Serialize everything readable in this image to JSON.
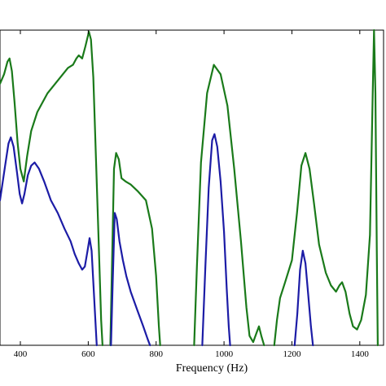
{
  "chart_data": {
    "type": "line",
    "xlabel": "Frequency (Hz)",
    "ylabel": "",
    "title": "",
    "xlim": [
      340,
      1470
    ],
    "ylim": [
      0,
      1
    ],
    "x_ticks": [
      400,
      600,
      800,
      1000,
      1200,
      1400
    ],
    "x_tick_labels": [
      "400",
      "600",
      "800",
      "1000",
      "1200",
      "1400"
    ],
    "grid": false,
    "legend": "none",
    "series": [
      {
        "color": "#1a7a1a",
        "points": [
          [
            340,
            0.83
          ],
          [
            352,
            0.86
          ],
          [
            362,
            0.9
          ],
          [
            368,
            0.91
          ],
          [
            375,
            0.87
          ],
          [
            383,
            0.77
          ],
          [
            392,
            0.64
          ],
          [
            400,
            0.56
          ],
          [
            410,
            0.52
          ],
          [
            420,
            0.6
          ],
          [
            432,
            0.68
          ],
          [
            450,
            0.74
          ],
          [
            480,
            0.8
          ],
          [
            510,
            0.84
          ],
          [
            540,
            0.88
          ],
          [
            555,
            0.89
          ],
          [
            565,
            0.91
          ],
          [
            572,
            0.92
          ],
          [
            582,
            0.91
          ],
          [
            592,
            0.95
          ],
          [
            602,
            0.995
          ],
          [
            608,
            0.97
          ],
          [
            615,
            0.85
          ],
          [
            622,
            0.62
          ],
          [
            630,
            0.35
          ],
          [
            638,
            0.08
          ],
          [
            642,
            0.0
          ],
          null,
          [
            665,
            0.0
          ],
          [
            670,
            0.25
          ],
          [
            676,
            0.56
          ],
          [
            682,
            0.61
          ],
          [
            690,
            0.59
          ],
          [
            698,
            0.53
          ],
          [
            710,
            0.52
          ],
          [
            725,
            0.51
          ],
          [
            745,
            0.49
          ],
          [
            770,
            0.46
          ],
          [
            788,
            0.37
          ],
          [
            800,
            0.22
          ],
          [
            808,
            0.06
          ],
          [
            812,
            0.0
          ],
          null,
          [
            912,
            0.0
          ],
          [
            920,
            0.25
          ],
          [
            932,
            0.58
          ],
          [
            950,
            0.8
          ],
          [
            970,
            0.89
          ],
          [
            990,
            0.86
          ],
          [
            1010,
            0.76
          ],
          [
            1030,
            0.56
          ],
          [
            1050,
            0.33
          ],
          [
            1066,
            0.12
          ],
          [
            1075,
            0.03
          ],
          [
            1086,
            0.01
          ],
          [
            1096,
            0.04
          ],
          [
            1103,
            0.06
          ],
          [
            1110,
            0.03
          ],
          [
            1118,
            0.0
          ],
          null,
          [
            1148,
            0.0
          ],
          [
            1156,
            0.08
          ],
          [
            1165,
            0.15
          ],
          [
            1180,
            0.2
          ],
          [
            1200,
            0.27
          ],
          [
            1215,
            0.42
          ],
          [
            1228,
            0.57
          ],
          [
            1240,
            0.61
          ],
          [
            1252,
            0.56
          ],
          [
            1265,
            0.45
          ],
          [
            1280,
            0.32
          ],
          [
            1300,
            0.23
          ],
          [
            1315,
            0.19
          ],
          [
            1330,
            0.17
          ],
          [
            1340,
            0.19
          ],
          [
            1348,
            0.2
          ],
          [
            1358,
            0.17
          ],
          [
            1370,
            0.1
          ],
          [
            1380,
            0.06
          ],
          [
            1392,
            0.05
          ],
          [
            1404,
            0.08
          ],
          [
            1418,
            0.16
          ],
          [
            1430,
            0.35
          ],
          [
            1438,
            0.8
          ],
          [
            1442,
            1.0
          ],
          [
            1446,
            0.8
          ],
          [
            1450,
            0.3
          ],
          [
            1453,
            0.0
          ]
        ]
      },
      {
        "color": "#1c1ca6",
        "points": [
          [
            340,
            0.46
          ],
          [
            355,
            0.57
          ],
          [
            365,
            0.64
          ],
          [
            372,
            0.66
          ],
          [
            380,
            0.63
          ],
          [
            390,
            0.55
          ],
          [
            398,
            0.48
          ],
          [
            405,
            0.45
          ],
          [
            412,
            0.48
          ],
          [
            422,
            0.54
          ],
          [
            432,
            0.57
          ],
          [
            442,
            0.58
          ],
          [
            455,
            0.56
          ],
          [
            470,
            0.52
          ],
          [
            490,
            0.46
          ],
          [
            510,
            0.42
          ],
          [
            530,
            0.37
          ],
          [
            548,
            0.33
          ],
          [
            560,
            0.29
          ],
          [
            572,
            0.26
          ],
          [
            582,
            0.24
          ],
          [
            590,
            0.25
          ],
          [
            598,
            0.3
          ],
          [
            604,
            0.34
          ],
          [
            610,
            0.3
          ],
          [
            615,
            0.2
          ],
          [
            621,
            0.08
          ],
          [
            625,
            0.0
          ],
          null,
          [
            667,
            0.0
          ],
          [
            672,
            0.2
          ],
          [
            678,
            0.42
          ],
          [
            684,
            0.4
          ],
          [
            692,
            0.33
          ],
          [
            702,
            0.27
          ],
          [
            712,
            0.22
          ],
          [
            725,
            0.17
          ],
          [
            745,
            0.11
          ],
          [
            762,
            0.06
          ],
          [
            775,
            0.02
          ],
          [
            782,
            0.0
          ],
          null,
          [
            936,
            0.0
          ],
          [
            945,
            0.25
          ],
          [
            955,
            0.5
          ],
          [
            965,
            0.65
          ],
          [
            972,
            0.67
          ],
          [
            980,
            0.63
          ],
          [
            990,
            0.52
          ],
          [
            1000,
            0.36
          ],
          [
            1008,
            0.18
          ],
          [
            1014,
            0.06
          ],
          [
            1018,
            0.0
          ],
          null,
          [
            1208,
            0.0
          ],
          [
            1216,
            0.1
          ],
          [
            1224,
            0.24
          ],
          [
            1232,
            0.3
          ],
          [
            1240,
            0.26
          ],
          [
            1248,
            0.16
          ],
          [
            1256,
            0.06
          ],
          [
            1262,
            0.0
          ]
        ]
      }
    ]
  }
}
